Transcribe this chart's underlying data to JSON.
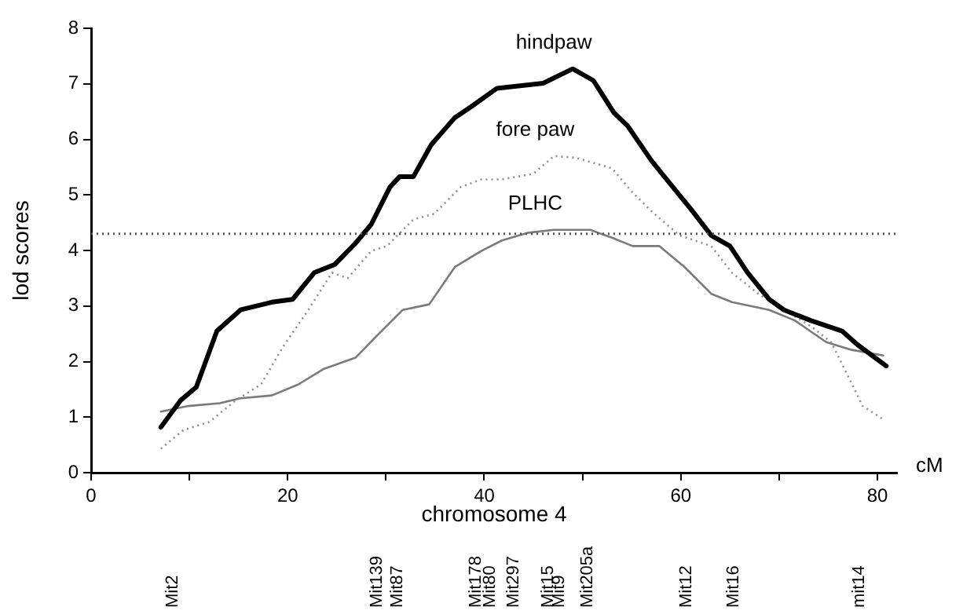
{
  "chart_data": {
    "type": "line",
    "xlabel": "chromosome 4",
    "ylabel": "lod scores",
    "xlim": [
      0,
      82
    ],
    "xticks": [
      0,
      {
        "value": 10,
        "label": null
      },
      20,
      {
        "value": 30,
        "label": null
      },
      40,
      {
        "value": 50,
        "label": null
      },
      60,
      {
        "value": 70,
        "label": null
      },
      80
    ],
    "ylim": [
      0,
      8
    ],
    "yticks": [
      0,
      1,
      2,
      3,
      4,
      5,
      6,
      7,
      8
    ],
    "grid": false,
    "legend": false,
    "marker": "none",
    "series": [
      {
        "name": "hindpaw",
        "color": "#000000",
        "line_style": "solid",
        "x": [
          7.1,
          9.1,
          10.7,
          12.8,
          15.2,
          18.4,
          20.5,
          22.7,
          24.8,
          26.9,
          28.5,
          30.4,
          31.4,
          32.8,
          34.6,
          37,
          38.6,
          41.3,
          46,
          49,
          51.1,
          53.2,
          54.6,
          57,
          59.2,
          61,
          63.1,
          65,
          66.8,
          69,
          70.5,
          73.2,
          76.4,
          78,
          80.9
        ],
        "values": [
          0.82,
          1.3,
          1.54,
          2.55,
          2.93,
          3.07,
          3.12,
          3.6,
          3.75,
          4.13,
          4.47,
          5.14,
          5.33,
          5.33,
          5.9,
          6.39,
          6.58,
          6.92,
          7.01,
          7.27,
          7.06,
          6.48,
          6.24,
          5.62,
          5.14,
          4.75,
          4.27,
          4.08,
          3.6,
          3.12,
          2.93,
          2.74,
          2.55,
          2.3,
          1.92
        ]
      },
      {
        "name": "fore paw",
        "color": "#8c8c8c",
        "line_style": "dotted",
        "x": [
          7.1,
          9.4,
          12,
          14.7,
          17.3,
          19.5,
          22.1,
          24.5,
          26.1,
          28.5,
          30.1,
          32.8,
          34.9,
          37.6,
          39.7,
          41.8,
          45,
          47.1,
          49.3,
          53,
          55.1,
          57.3,
          59.9,
          63.1,
          65.2,
          67.9,
          70.5,
          73.2,
          75.3,
          76.9,
          78.5,
          80.6
        ],
        "values": [
          0.43,
          0.77,
          0.91,
          1.3,
          1.59,
          2.26,
          2.93,
          3.6,
          3.5,
          3.99,
          4.08,
          4.56,
          4.66,
          5.14,
          5.28,
          5.28,
          5.38,
          5.7,
          5.67,
          5.48,
          5.04,
          4.66,
          4.27,
          4.08,
          3.6,
          3.22,
          2.93,
          2.64,
          2.35,
          1.78,
          1.2,
          0.96
        ]
      },
      {
        "name": "PLHC",
        "color": "#7a7a7a",
        "line_style": "solid",
        "x": [
          7.1,
          9.9,
          13.1,
          15.2,
          18.4,
          21.1,
          23.7,
          26.9,
          29,
          31.7,
          34.4,
          37,
          39.7,
          41.8,
          44.5,
          47.1,
          50.8,
          53,
          55.1,
          57.8,
          60.4,
          63.1,
          65.2,
          69,
          71.6,
          74.8,
          77.4,
          80.6
        ],
        "values": [
          1.1,
          1.2,
          1.25,
          1.34,
          1.39,
          1.59,
          1.87,
          2.07,
          2.45,
          2.93,
          3.03,
          3.7,
          3.99,
          4.18,
          4.32,
          4.37,
          4.37,
          4.23,
          4.08,
          4.08,
          3.7,
          3.22,
          3.07,
          2.93,
          2.74,
          2.35,
          2.21,
          2.11
        ]
      }
    ],
    "ref_lines": [
      {
        "axis": "y",
        "value": 4.3,
        "line_style": "dotted",
        "color": "#555555"
      }
    ],
    "annotations": [
      "cM",
      "Mit2",
      "Mit139",
      "Mit87",
      "Mit178",
      "Mit80",
      "Mit297",
      "Mit15",
      "Mit9",
      "Mit205a",
      "Mit12",
      "Mit16",
      "mit14"
    ]
  }
}
